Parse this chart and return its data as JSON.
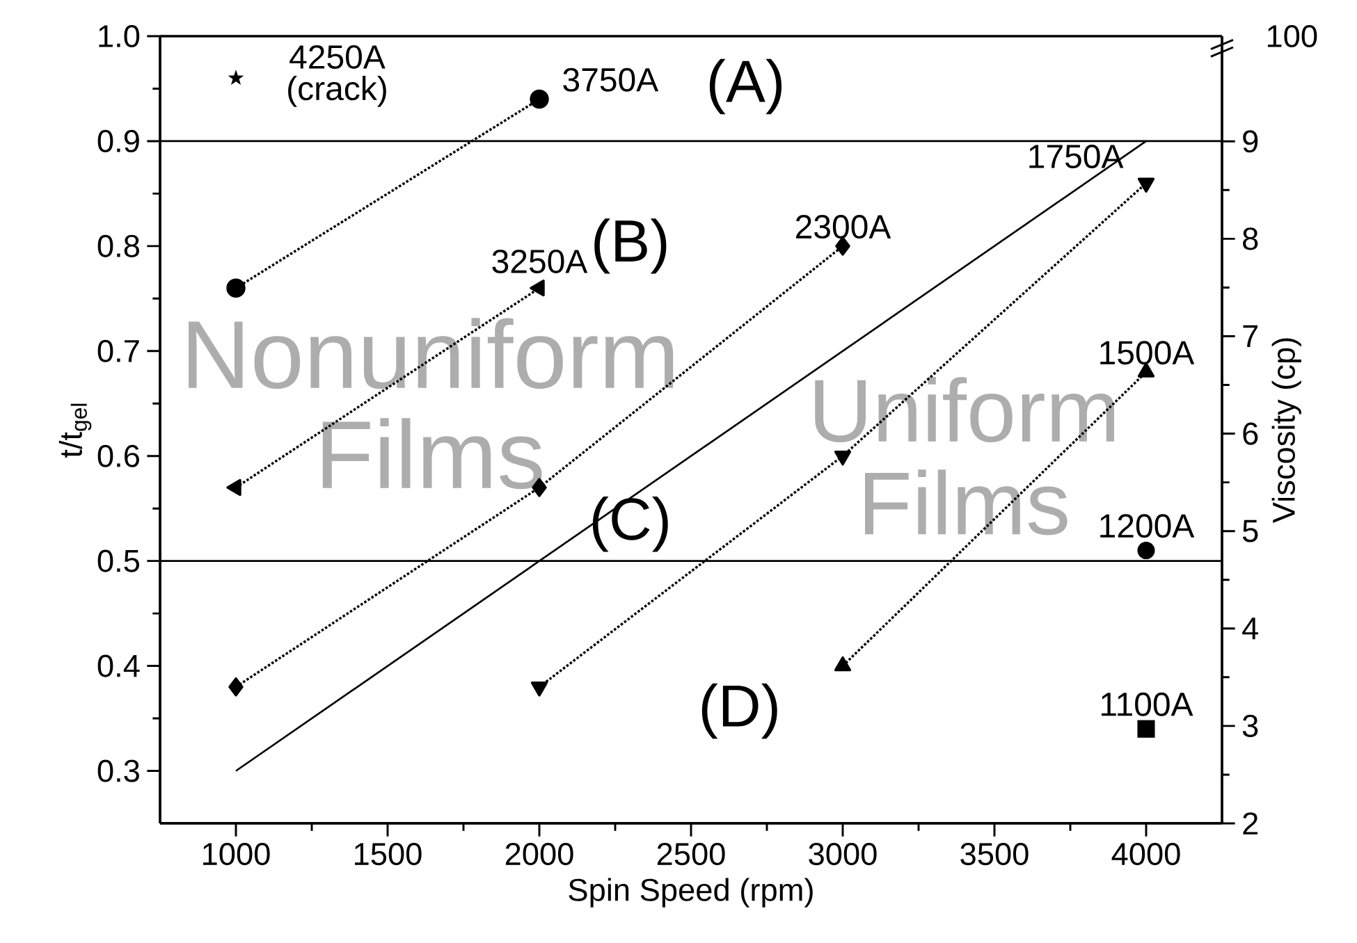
{
  "chart_data": {
    "type": "scatter",
    "xlabel": "Spin Speed (rpm)",
    "ylabel": "t/t$_{gel}$",
    "y2label": "Viscosity (cp)",
    "xlim": [
      750,
      4250
    ],
    "xticks": [
      1000,
      1500,
      2000,
      2500,
      3000,
      3500,
      4000
    ],
    "ylim": [
      0.25,
      1.0
    ],
    "yticks": [
      0.3,
      0.4,
      0.5,
      0.6,
      0.7,
      0.8,
      0.9,
      {
        "value": 1.0,
        "label": "1.0"
      }
    ],
    "y2lim": [
      2,
      10.08
    ],
    "y2ticks": [
      2,
      3,
      4,
      5,
      6,
      7,
      8,
      9
    ],
    "grid": false,
    "series": [
      {
        "name": "4250A (crack)",
        "marker": "star",
        "color": "#000000",
        "x": [
          1000
        ],
        "values": [
          0.96
        ]
      },
      {
        "name": "3750A",
        "type": "line",
        "marker": "circle",
        "line_style": "dotted",
        "color": "#000000",
        "x": [
          1000,
          2000
        ],
        "values": [
          0.76,
          0.94
        ]
      },
      {
        "name": "3250A",
        "type": "line",
        "marker": "triangle",
        "line_style": "dotted",
        "color": "#000000",
        "x": [
          1000,
          2000
        ],
        "values": [
          0.57,
          0.76
        ]
      },
      {
        "name": "2300A",
        "type": "line",
        "marker": "diamond",
        "line_style": "dotted",
        "color": "#000000",
        "x": [
          1000,
          2000,
          3000
        ],
        "values": [
          0.38,
          0.57,
          0.8
        ]
      },
      {
        "name": "1750A",
        "type": "line",
        "marker": "triangle",
        "line_style": "dotted",
        "color": "#000000",
        "x": [
          2000,
          3000,
          4000
        ],
        "values": [
          0.38,
          0.6,
          0.86
        ]
      },
      {
        "name": "1500A",
        "type": "line",
        "marker": "triangle",
        "line_style": "dotted",
        "color": "#000000",
        "x": [
          3000,
          4000
        ],
        "values": [
          0.4,
          0.68
        ]
      },
      {
        "name": "1200A",
        "marker": "circle",
        "color": "#000000",
        "x": [
          4000
        ],
        "values": [
          0.51
        ]
      },
      {
        "name": "1100A",
        "marker": "square",
        "color": "#000000",
        "x": [
          4000
        ],
        "values": [
          0.34
        ]
      },
      {
        "type": "line",
        "marker": "none",
        "line_style": "solid",
        "color": "#000000",
        "x": [
          1000,
          4000
        ],
        "values": [
          0.3,
          0.9
        ]
      }
    ],
    "ref_lines": [
      {
        "axis": "y",
        "value": 0.9,
        "color": "#000000"
      },
      {
        "axis": "y",
        "value": 0.5,
        "color": "#000000"
      }
    ],
    "annotations": [
      "(A)",
      "(B)",
      "(C)",
      "(D)",
      "Nonuniform Films",
      "Uniform Films",
      "100"
    ]
  }
}
